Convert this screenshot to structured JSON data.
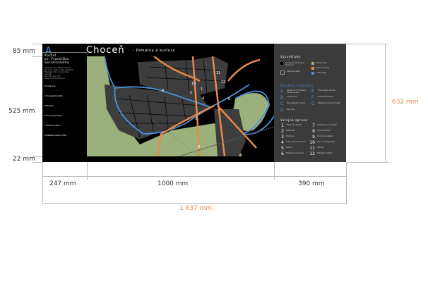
{
  "sign": {
    "logo_letter": "A",
    "title": "Choceň",
    "subtitle": "- Památky a kultura",
    "left_panel": {
      "heading": [
        "Kostel",
        "sv. Františka",
        "Serafínského"
      ],
      "info": [
        "Zámecké 233, 565 01 Choceň",
        "Duchovní správa: Mgr. Sebastian",
        "Plesinger, P.Lic. Ing. Jaroslav",
        "Švaněk",
        "Tel.: 465 471 738",
        "www.choceň-farnost.cz"
      ],
      "sections": [
        "B Sokolovna",
        "C Evangelický kostel",
        "D Bez tíhy",
        "E Chocenský zámek",
        "F Orlické muzeum",
        "G Městské pozemní fotky"
      ]
    },
    "legend": {
      "heading": "Vysvětlivky",
      "items": [
        {
          "label": "současná zástavba (budovy)",
          "color": "#000000"
        },
        {
          "label": "veřejná zeleň",
          "color": "#3b3b3b"
        },
        {
          "label": "zeleň, lesy",
          "color": "#9bb07a"
        },
        {
          "label": "hlavní silnice",
          "color": "#e8884a"
        },
        {
          "label": "vodní toky",
          "color": "#4a8fd8"
        }
      ],
      "monuments_heading": "Památky a kultura",
      "monuments": [
        {
          "letter": "A",
          "label": "Kostel sv. Františka Serafínského"
        },
        {
          "letter": "B",
          "label": "Sokolovna"
        },
        {
          "letter": "C",
          "label": "Evangelický kostel"
        },
        {
          "letter": "D",
          "label": "Bez tíhy"
        },
        {
          "letter": "E",
          "label": "Chocenský zámek"
        },
        {
          "letter": "F",
          "label": "Orlické muzeum"
        },
        {
          "letter": "G",
          "label": "Městské pozemní fotky"
        }
      ],
      "public_heading": "Veřejná zpráva",
      "public": [
        {
          "n": "1",
          "label": "Vlakové nádraží"
        },
        {
          "n": "2",
          "label": "Pošta ČR"
        },
        {
          "n": "3",
          "label": "Radnice"
        },
        {
          "n": "4",
          "label": "Informační centrum"
        },
        {
          "n": "5",
          "label": "Policie"
        },
        {
          "n": "6",
          "label": "Městská knihovna"
        },
        {
          "n": "7",
          "label": "Autobusové nádraží"
        },
        {
          "n": "8",
          "label": "Zimní stadion"
        },
        {
          "n": "9",
          "label": "ZŠ Komenského"
        },
        {
          "n": "10",
          "label": "ZŠ T. G. Masaryka"
        },
        {
          "n": "11",
          "label": "Hřbitov"
        },
        {
          "n": "12",
          "label": "Městský hřbitov"
        }
      ]
    },
    "map_labels": [
      "9",
      "10",
      "5",
      "1",
      "4",
      "11",
      "12",
      "6",
      "3",
      "8"
    ]
  },
  "dimensions": {
    "heights": [
      "85 mm",
      "525 mm",
      "22 mm"
    ],
    "total_height": "632 mm",
    "widths": [
      "247 mm",
      "1000 mm",
      "390 mm"
    ],
    "total_width": "1 637 mm"
  },
  "colors": {
    "accent_blue": "#4a8fd8",
    "road_orange": "#e8884a",
    "green": "#9bb07a",
    "dimension_total": "#e8884a"
  }
}
